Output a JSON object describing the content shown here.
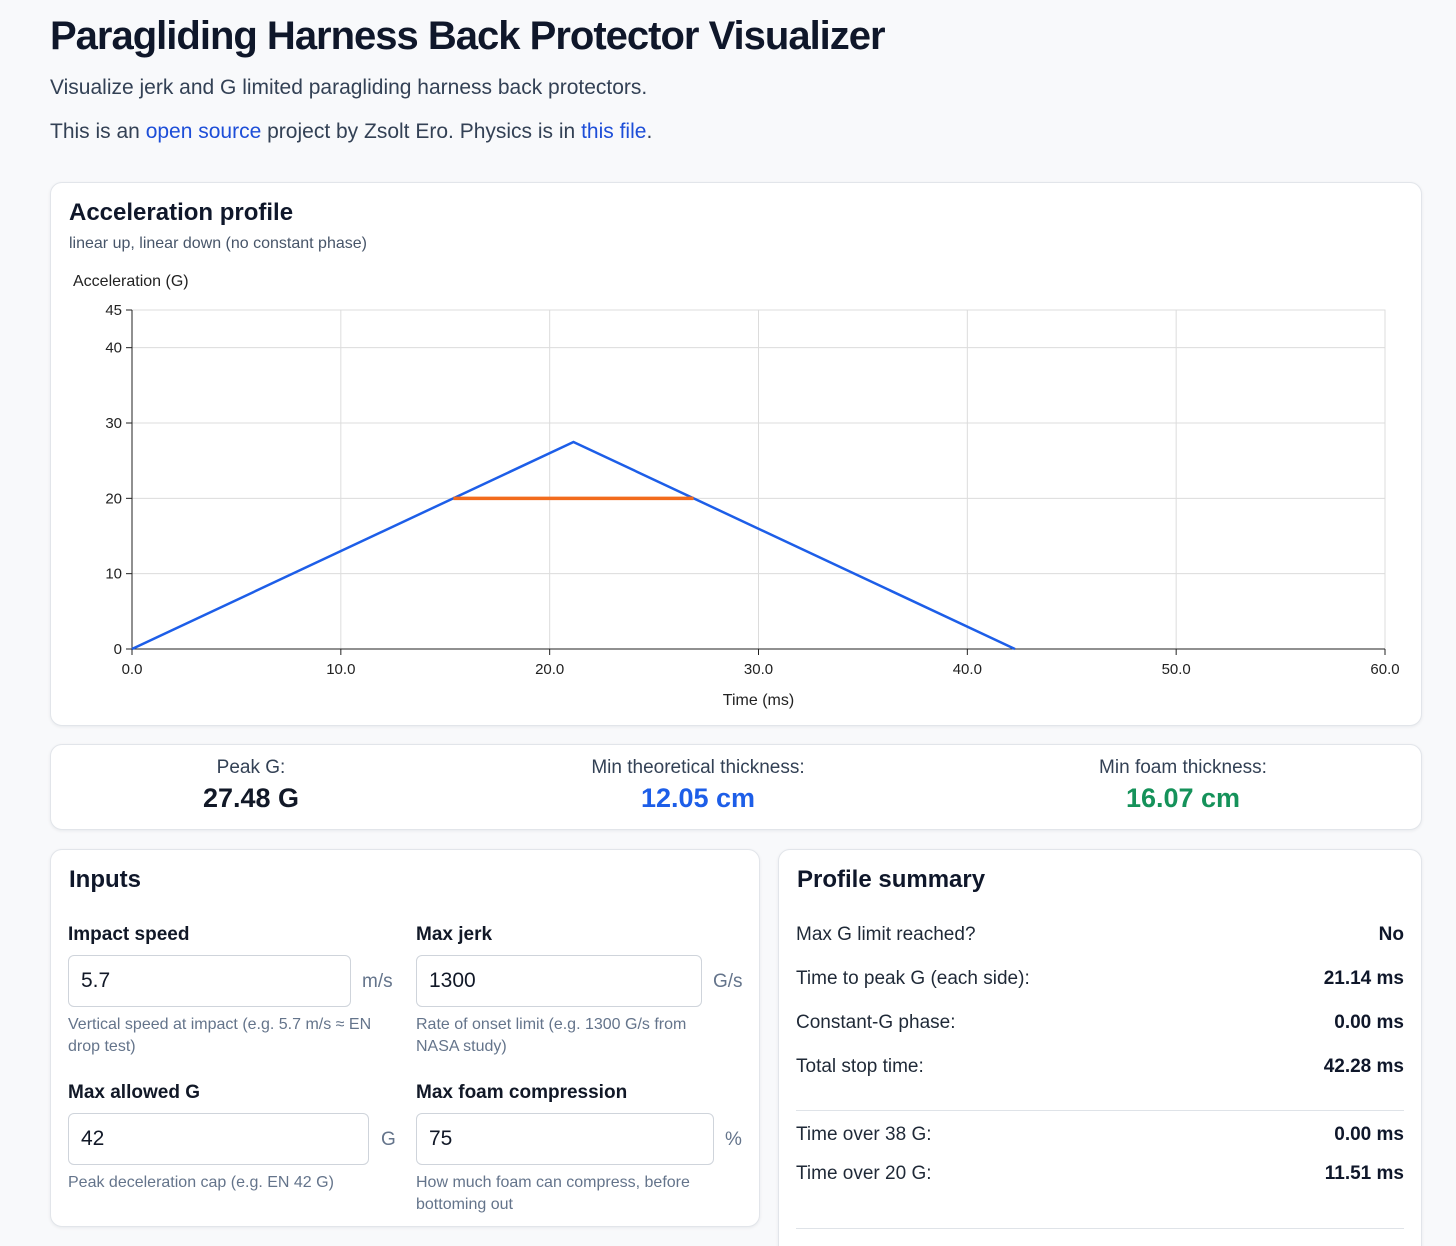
{
  "header": {
    "title": "Paragliding Harness Back Protector Visualizer",
    "subtitle": "Visualize jerk and G limited paragliding harness back protectors.",
    "credits_prefix": "This is an ",
    "credits_link1": "open source",
    "credits_middle": " project by Zsolt Ero. Physics is in ",
    "credits_link2": "this file",
    "credits_suffix": "."
  },
  "chart_card": {
    "title": "Acceleration profile",
    "subtitle": "linear up, linear down (no constant phase)"
  },
  "chart_data": {
    "type": "line",
    "title": "",
    "xlabel": "Time (ms)",
    "ylabel": "Acceleration (G)",
    "xlim": [
      0,
      60
    ],
    "ylim": [
      0,
      45
    ],
    "x_ticks": [
      "0.0",
      "10.0",
      "20.0",
      "30.0",
      "40.0",
      "50.0",
      "60.0"
    ],
    "x_tick_values": [
      0,
      10,
      20,
      30,
      40,
      50,
      60
    ],
    "y_ticks": [
      "0",
      "10",
      "20",
      "30",
      "40",
      "45"
    ],
    "y_tick_values": [
      0,
      10,
      20,
      30,
      40,
      45
    ],
    "grid": true,
    "series": [
      {
        "color": "#1d5ee8",
        "x": [
          0,
          21.14,
          42.28
        ],
        "y": [
          0,
          27.48,
          0
        ]
      },
      {
        "color": "#f26b1d",
        "x": [
          15.39,
          26.89
        ],
        "y": [
          20,
          20
        ]
      }
    ]
  },
  "stats": {
    "peak_label": "Peak G:",
    "peak_value": "27.48 G",
    "theoretical_label": "Min theoretical thickness:",
    "theoretical_value": "12.05 cm",
    "foam_label": "Min foam thickness:",
    "foam_value": "16.07 cm",
    "colors": {
      "peak": "#111827",
      "theoretical": "#1d5ee8",
      "foam": "#15925a"
    }
  },
  "inputs": {
    "title": "Inputs",
    "impact_speed": {
      "label": "Impact speed",
      "value": "5.7",
      "unit": "m/s",
      "hint": "Vertical speed at impact (e.g. 5.7 m/s ≈ EN drop test)"
    },
    "max_jerk": {
      "label": "Max jerk",
      "value": "1300",
      "unit": "G/s",
      "hint": "Rate of onset limit (e.g. 1300 G/s from NASA study)"
    },
    "max_g": {
      "label": "Max allowed G",
      "value": "42",
      "unit": "G",
      "hint": "Peak deceleration cap (e.g. EN 42 G)"
    },
    "max_compression": {
      "label": "Max foam compression",
      "value": "75",
      "unit": "%",
      "hint": "How much foam can compress, before bottoming out"
    }
  },
  "summary": {
    "title": "Profile summary",
    "rows": [
      {
        "label": "Max G limit reached?",
        "value": "No"
      },
      {
        "label": "Time to peak G (each side):",
        "value": "21.14 ms"
      },
      {
        "label": "Constant-G phase:",
        "value": "0.00 ms"
      },
      {
        "label": "Total stop time:",
        "value": "42.28 ms"
      }
    ],
    "threshold_rows": [
      {
        "label": "Time over 38 G:",
        "value": "0.00 ms"
      },
      {
        "label": "Time over 20 G:",
        "value": "11.51 ms"
      }
    ]
  }
}
